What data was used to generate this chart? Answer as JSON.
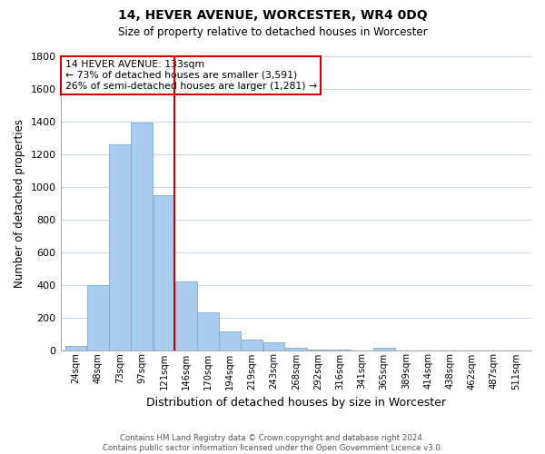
{
  "title": "14, HEVER AVENUE, WORCESTER, WR4 0DQ",
  "subtitle": "Size of property relative to detached houses in Worcester",
  "xlabel": "Distribution of detached houses by size in Worcester",
  "ylabel": "Number of detached properties",
  "bin_labels": [
    "24sqm",
    "48sqm",
    "73sqm",
    "97sqm",
    "121sqm",
    "146sqm",
    "170sqm",
    "194sqm",
    "219sqm",
    "243sqm",
    "268sqm",
    "292sqm",
    "316sqm",
    "341sqm",
    "365sqm",
    "389sqm",
    "414sqm",
    "438sqm",
    "462sqm",
    "487sqm",
    "511sqm"
  ],
  "bar_values": [
    25,
    400,
    1260,
    1390,
    950,
    420,
    230,
    115,
    65,
    50,
    15,
    5,
    3,
    0,
    13,
    0,
    0,
    0,
    0,
    0,
    0
  ],
  "bar_color": "#aaccee",
  "bar_edgecolor": "#7aadd4",
  "vline_color": "#cc0000",
  "annotation_title": "14 HEVER AVENUE: 133sqm",
  "annotation_line1": "← 73% of detached houses are smaller (3,591)",
  "annotation_line2": "26% of semi-detached houses are larger (1,281) →",
  "annotation_box_edgecolor": "#cc0000",
  "ylim": [
    0,
    1800
  ],
  "yticks": [
    0,
    200,
    400,
    600,
    800,
    1000,
    1200,
    1400,
    1600,
    1800
  ],
  "footer1": "Contains HM Land Registry data © Crown copyright and database right 2024.",
  "footer2": "Contains public sector information licensed under the Open Government Licence v3.0.",
  "background_color": "#ffffff",
  "grid_color": "#c8d8e8",
  "title_fontsize": 10,
  "subtitle_fontsize": 9
}
